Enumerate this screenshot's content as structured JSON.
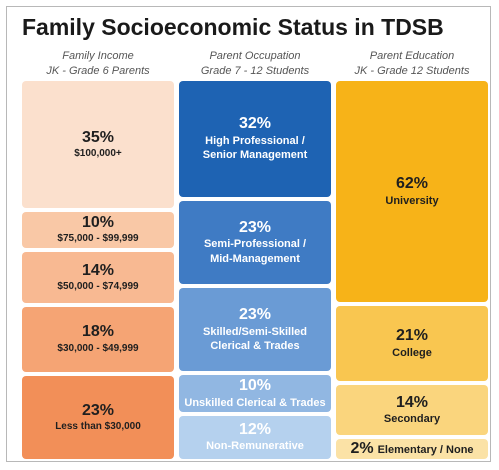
{
  "title": "Family Socioeconomic Status in TDSB",
  "chart_data": [
    {
      "type": "bar",
      "title": "Family Income",
      "subtitle": "JK - Grade 6 Parents",
      "categories": [
        "$100,000+",
        "$75,000 - $99,999",
        "$50,000 - $74,999",
        "$30,000 - $49,999",
        "Less than $30,000"
      ],
      "values": [
        35,
        10,
        14,
        18,
        23
      ],
      "value_labels": [
        "35%",
        "10%",
        "14%",
        "18%",
        "23%"
      ],
      "colors": [
        "#fbe0cd",
        "#f9c8a6",
        "#f8b992",
        "#f5a474",
        "#f28f58"
      ],
      "unit": "%"
    },
    {
      "type": "bar",
      "title": "Parent Occupation",
      "subtitle": "Grade 7 - 12 Students",
      "categories": [
        "High Professional / Senior Management",
        "Semi-Professional / Mid-Management",
        "Skilled/Semi-Skilled Clerical & Trades",
        "Unskilled Clerical & Trades",
        "Non-Remunerative"
      ],
      "label_lines": [
        [
          "High Professional /",
          "Senior Management"
        ],
        [
          "Semi-Professional /",
          "Mid-Management"
        ],
        [
          "Skilled/Semi-Skilled",
          "Clerical & Trades"
        ],
        [
          "Unskilled Clerical & Trades"
        ],
        [
          "Non-Remunerative"
        ]
      ],
      "values": [
        32,
        23,
        23,
        10,
        12
      ],
      "value_labels": [
        "32%",
        "23%",
        "23%",
        "10%",
        "12%"
      ],
      "colors": [
        "#1e63b3",
        "#3f7bc4",
        "#6a9bd5",
        "#91b7e2",
        "#b5d1ee"
      ],
      "unit": "%"
    },
    {
      "type": "bar",
      "title": "Parent Education",
      "subtitle": "JK - Grade 12 Students",
      "categories": [
        "University",
        "College",
        "Secondary",
        "Elementary / None"
      ],
      "values": [
        62,
        21,
        14,
        2
      ],
      "value_labels": [
        "62%",
        "21%",
        "14%",
        "2%"
      ],
      "colors": [
        "#f7b318",
        "#f9c650",
        "#fad57d",
        "#fbe2a6"
      ],
      "unit": "%"
    }
  ]
}
